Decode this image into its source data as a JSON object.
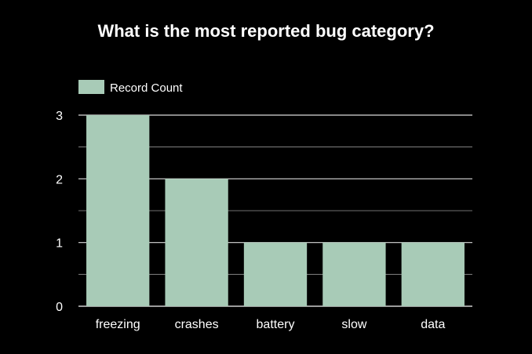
{
  "chart_data": {
    "type": "bar",
    "title": "What is the most reported bug category?",
    "categories": [
      "freezing",
      "crashes",
      "battery",
      "slow",
      "data"
    ],
    "series": [
      {
        "name": "Record Count",
        "values": [
          3,
          2,
          1,
          1,
          1
        ],
        "color": "#a8cbb7"
      }
    ],
    "ylim": [
      0,
      3
    ],
    "yticks": [
      "0",
      "1",
      "2",
      "3"
    ],
    "xlabel": "",
    "ylabel": "",
    "grid": true,
    "minor_grid": true,
    "legend_position": "top-left",
    "colors": {
      "background": "#000000",
      "text": "#ffffff",
      "grid": "#d9d9d9"
    }
  }
}
